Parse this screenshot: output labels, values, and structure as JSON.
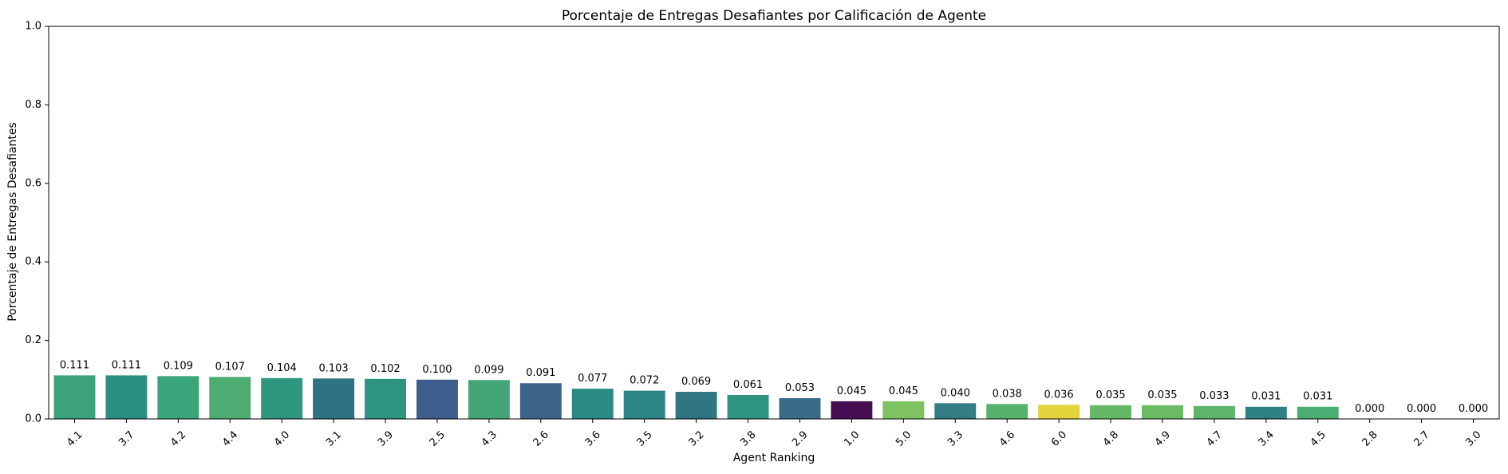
{
  "chart_data": {
    "type": "bar",
    "title": "Porcentaje de Entregas Desafiantes por Calificación de Agente",
    "xlabel": "Agent Ranking",
    "ylabel": "Porcentaje de Entregas Desafiantes",
    "ylim": [
      0,
      1.0
    ],
    "yticks": [
      0.0,
      0.2,
      0.4,
      0.6,
      0.8,
      1.0
    ],
    "ytick_labels": [
      "0.0",
      "0.2",
      "0.4",
      "0.6",
      "0.8",
      "1.0"
    ],
    "grid": false,
    "categories": [
      "4.1",
      "3.7",
      "4.2",
      "4.4",
      "4.0",
      "3.1",
      "3.9",
      "2.5",
      "4.3",
      "2.6",
      "3.6",
      "3.5",
      "3.2",
      "3.8",
      "2.9",
      "1.0",
      "5.0",
      "3.3",
      "4.6",
      "6.0",
      "4.8",
      "4.9",
      "4.7",
      "3.4",
      "4.5",
      "2.8",
      "2.7",
      "3.0"
    ],
    "values": [
      0.111,
      0.111,
      0.109,
      0.107,
      0.104,
      0.103,
      0.102,
      0.1,
      0.099,
      0.091,
      0.077,
      0.072,
      0.069,
      0.061,
      0.053,
      0.045,
      0.045,
      0.04,
      0.038,
      0.036,
      0.035,
      0.035,
      0.033,
      0.031,
      0.031,
      0.0,
      0.0,
      0.0
    ],
    "value_labels": [
      "0.111",
      "0.111",
      "0.109",
      "0.107",
      "0.104",
      "0.103",
      "0.102",
      "0.100",
      "0.099",
      "0.091",
      "0.077",
      "0.072",
      "0.069",
      "0.061",
      "0.053",
      "0.045",
      "0.045",
      "0.040",
      "0.038",
      "0.036",
      "0.035",
      "0.035",
      "0.033",
      "0.031",
      "0.031",
      "0.000",
      "0.000",
      "0.000"
    ],
    "colors": [
      "#3ba27b",
      "#2a8f83",
      "#3aa47a",
      "#4cac72",
      "#30977f",
      "#2f7282",
      "#2e9480",
      "#3e5e8c",
      "#44a676",
      "#3f648b",
      "#2b8b82",
      "#2c8484",
      "#2f7582",
      "#2f9381",
      "#396d87",
      "#450d52",
      "#7fc261",
      "#337d85",
      "#57b26c",
      "#e4d43c",
      "#65b865",
      "#6bbb63",
      "#5db56a",
      "#2e8283",
      "#4aad72",
      "#3c5089",
      "#3a4e8a",
      "#2f8285"
    ]
  }
}
